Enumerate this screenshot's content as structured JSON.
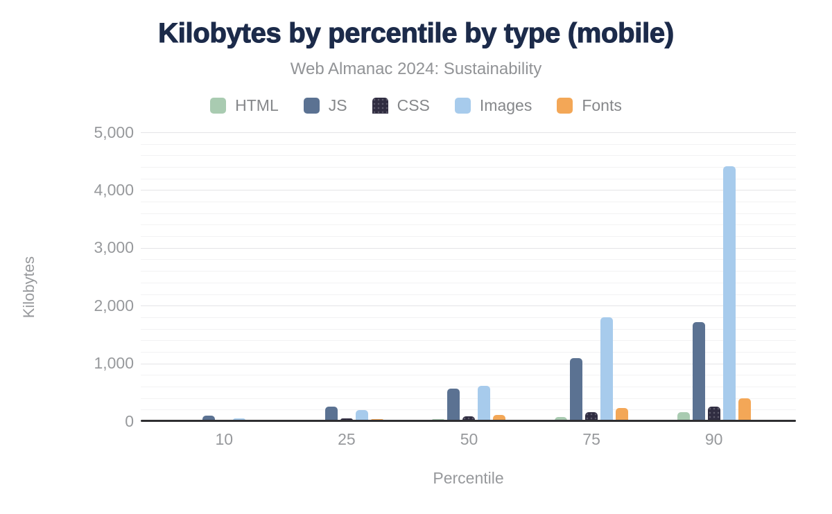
{
  "figure": {
    "title": "Kilobytes by percentile by type (mobile)",
    "subtitle": "Web Almanac 2024: Sustainability"
  },
  "chart_data": {
    "type": "bar",
    "title": "Kilobytes by percentile by type (mobile)",
    "subtitle": "Web Almanac 2024: Sustainability",
    "xlabel": "Percentile",
    "ylabel": "Kilobytes",
    "categories": [
      "10",
      "25",
      "50",
      "75",
      "90"
    ],
    "series": [
      {
        "name": "HTML",
        "color": "#a9cbb1",
        "pattern": "none",
        "values": [
          8,
          15,
          30,
          55,
          140
        ]
      },
      {
        "name": "JS",
        "color": "#5b7292",
        "pattern": "none",
        "values": [
          85,
          245,
          555,
          1080,
          1700
        ]
      },
      {
        "name": "CSS",
        "color": "#302d41",
        "pattern": "dots",
        "values": [
          10,
          36,
          70,
          145,
          240
        ]
      },
      {
        "name": "Images",
        "color": "#a7cbec",
        "pattern": "none",
        "values": [
          32,
          175,
          595,
          1790,
          4400
        ]
      },
      {
        "name": "Fonts",
        "color": "#f3a757",
        "pattern": "none",
        "values": [
          0,
          30,
          95,
          215,
          385
        ]
      }
    ],
    "ylim": [
      0,
      5000
    ],
    "yticks": [
      0,
      1000,
      2000,
      3000,
      4000,
      5000
    ],
    "ytick_labels": [
      "0",
      "1,000",
      "2,000",
      "3,000",
      "4,000",
      "5,000"
    ],
    "minor_grid_step": 200,
    "grid": true,
    "legend_position": "top"
  },
  "style": {
    "background": "#ffffff",
    "title_color": "#1c2b4a",
    "subtitle_color": "#919396",
    "tick_color": "#97999c",
    "legend_text_color": "#85878a",
    "axis_line_color": "#2e2e31",
    "major_grid_color": "#e4e4e6",
    "minor_grid_color": "#f2f2f3"
  }
}
